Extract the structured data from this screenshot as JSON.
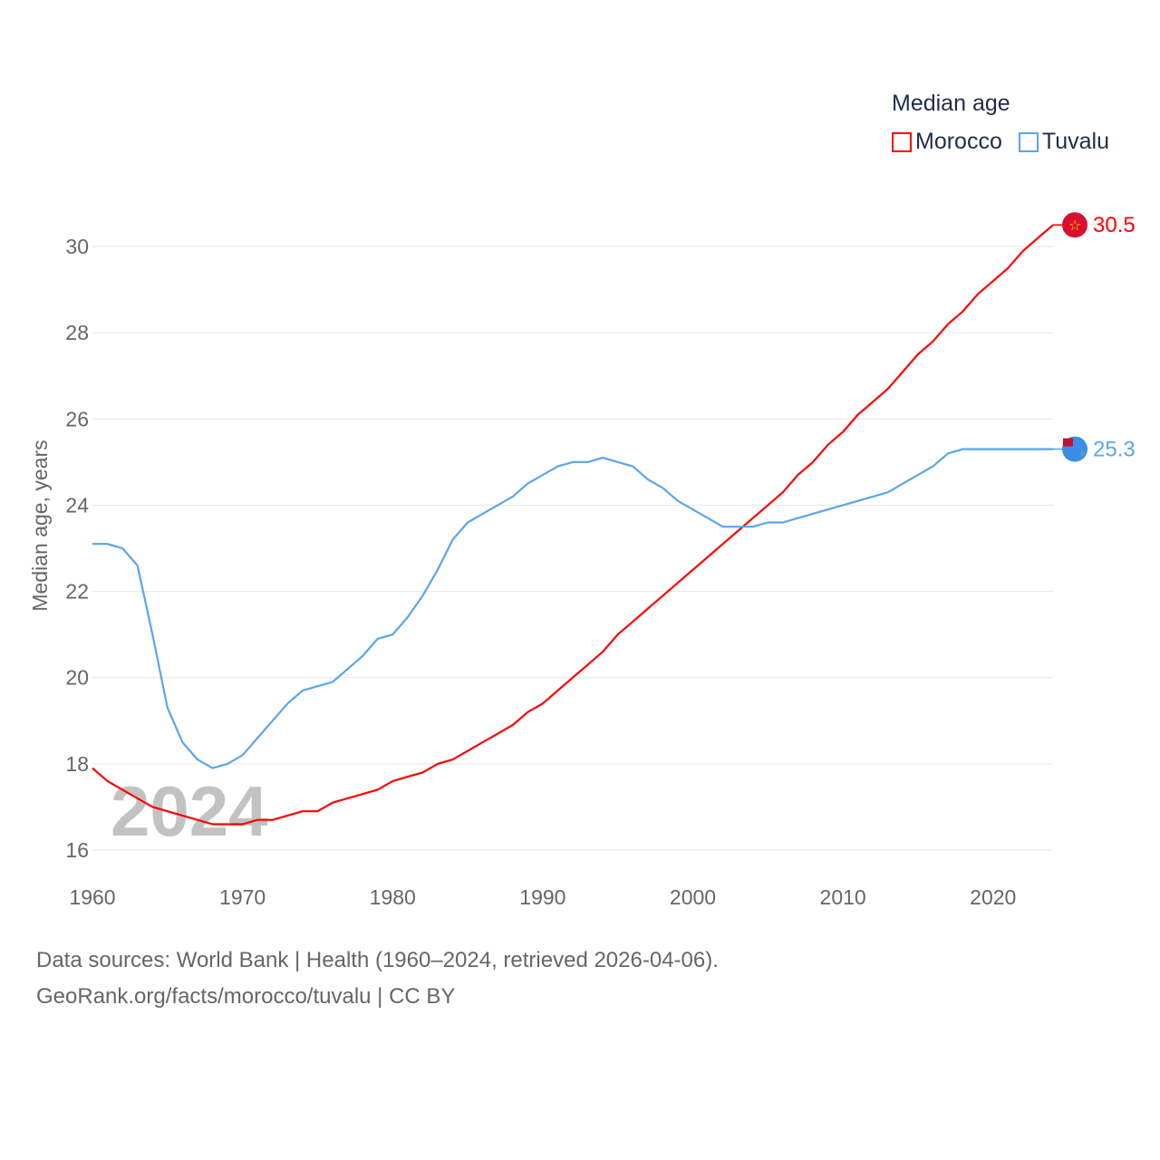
{
  "chart_data": {
    "type": "line",
    "title": "Median age",
    "xlabel": "",
    "ylabel": "Median age, years",
    "xlim": [
      1960,
      2024
    ],
    "ylim": [
      16,
      30
    ],
    "yticks": [
      16,
      18,
      20,
      22,
      24,
      26,
      28,
      30
    ],
    "xticks": [
      1960,
      1970,
      1980,
      1990,
      2000,
      2010,
      2020
    ],
    "grid": true,
    "legend_position": "top-right",
    "watermark_year": "2024",
    "x_start": 1960,
    "series": [
      {
        "name": "Morocco",
        "color": "#ff0000",
        "end_label": "30.5",
        "flag_icon": "morocco-flag",
        "values": [
          17.9,
          17.6,
          17.4,
          17.2,
          17.0,
          16.9,
          16.8,
          16.7,
          16.6,
          16.6,
          16.6,
          16.7,
          16.7,
          16.8,
          16.9,
          16.9,
          17.1,
          17.2,
          17.3,
          17.4,
          17.6,
          17.7,
          17.8,
          18.0,
          18.1,
          18.3,
          18.5,
          18.7,
          18.9,
          19.2,
          19.4,
          19.7,
          20.0,
          20.3,
          20.6,
          21.0,
          21.3,
          21.6,
          21.9,
          22.2,
          22.5,
          22.8,
          23.1,
          23.4,
          23.7,
          24.0,
          24.3,
          24.7,
          25.0,
          25.4,
          25.7,
          26.1,
          26.4,
          26.7,
          27.1,
          27.5,
          27.8,
          28.2,
          28.5,
          28.9,
          29.2,
          29.5,
          29.9,
          30.2,
          30.5
        ]
      },
      {
        "name": "Tuvalu",
        "color": "#5aa5ee",
        "end_label": "25.3",
        "flag_icon": "tuvalu-flag",
        "values": [
          23.1,
          23.1,
          23.0,
          22.6,
          21.0,
          19.3,
          18.5,
          18.1,
          17.9,
          18.0,
          18.2,
          18.6,
          19.0,
          19.4,
          19.7,
          19.8,
          19.9,
          20.2,
          20.5,
          20.9,
          21.0,
          21.4,
          21.9,
          22.5,
          23.2,
          23.6,
          23.8,
          24.0,
          24.2,
          24.5,
          24.7,
          24.9,
          25.0,
          25.0,
          25.1,
          25.0,
          24.9,
          24.6,
          24.4,
          24.1,
          23.9,
          23.7,
          23.5,
          23.5,
          23.5,
          23.6,
          23.6,
          23.7,
          23.8,
          23.9,
          24.0,
          24.1,
          24.2,
          24.3,
          24.5,
          24.7,
          24.9,
          25.2,
          25.3,
          25.3,
          25.3,
          25.3,
          25.3,
          25.3,
          25.3
        ]
      }
    ]
  },
  "footer": {
    "source_line": "Data sources: World Bank | Health (1960–2024, retrieved 2026-04-06).",
    "url_line": "GeoRank.org/facts/morocco/tuvalu | CC BY"
  }
}
